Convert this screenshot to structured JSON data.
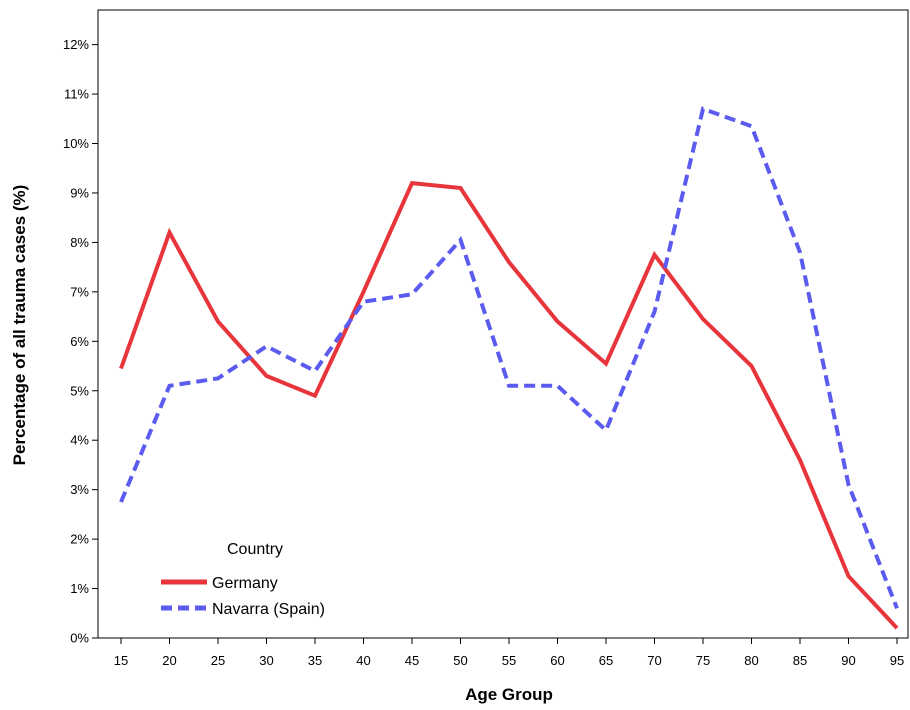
{
  "chart_data": {
    "type": "line",
    "title": "",
    "xlabel": "Age Group",
    "ylabel": "Percentage of all trauma cases (%)",
    "x": [
      15,
      20,
      25,
      30,
      35,
      40,
      45,
      50,
      55,
      60,
      65,
      70,
      75,
      80,
      85,
      90,
      95
    ],
    "x_tick_labels": [
      "15",
      "20",
      "25",
      "30",
      "35",
      "40",
      "45",
      "50",
      "55",
      "60",
      "65",
      "70",
      "75",
      "80",
      "85",
      "90",
      "95"
    ],
    "ylim": [
      0,
      12.7
    ],
    "y_ticks": [
      0,
      1,
      2,
      3,
      4,
      5,
      6,
      7,
      8,
      9,
      10,
      11,
      12
    ],
    "y_tick_labels": [
      "0%",
      "1%",
      "2%",
      "3%",
      "4%",
      "5%",
      "6%",
      "7%",
      "8%",
      "9%",
      "10%",
      "11%",
      "12%"
    ],
    "grid": false,
    "legend": {
      "title": "Country",
      "placement": "bottom-left"
    },
    "series": [
      {
        "name": "Germany",
        "color": "#e8353b",
        "style": "solid",
        "values": [
          5.45,
          8.2,
          6.4,
          5.3,
          4.9,
          7.0,
          9.2,
          9.1,
          7.6,
          6.4,
          5.55,
          7.75,
          6.45,
          5.5,
          3.6,
          1.25,
          0.2
        ]
      },
      {
        "name": "Navarra (Spain)",
        "color": "#5b5bf0",
        "style": "dashed",
        "values": [
          2.75,
          5.1,
          5.25,
          5.9,
          5.4,
          6.8,
          6.95,
          8.05,
          5.1,
          5.1,
          4.2,
          6.6,
          10.7,
          10.35,
          7.8,
          3.1,
          0.6
        ]
      }
    ]
  }
}
